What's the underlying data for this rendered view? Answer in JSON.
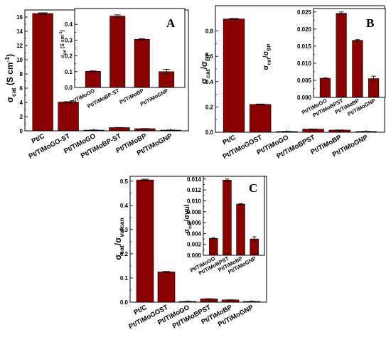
{
  "chart_data": [
    {
      "id": "A-main",
      "type": "bar",
      "categories": [
        "Pt/C",
        "Pt/TiMoGO-ST",
        "Pt/TiMoGO",
        "Pt/TiMoBP-ST",
        "Pt/TiMoBP",
        "Pt/TiMoGNP"
      ],
      "values": [
        16.5,
        4.05,
        0.1,
        0.45,
        0.3,
        0.1
      ],
      "errors": [
        0.1,
        0.05,
        0.02,
        0.02,
        0.02,
        0.02
      ],
      "ylim": [
        0,
        17
      ],
      "yticks": [
        0,
        2,
        4,
        6,
        8,
        10,
        12,
        14,
        16
      ],
      "ytick_labels": [
        "0",
        "2",
        "4",
        "6",
        "8",
        "10",
        "12",
        "14",
        "16"
      ],
      "ylabel": {
        "main": "σ",
        "sub": "cat",
        "rest": " (S cm",
        "sup": "-1",
        "close": ")"
      },
      "color": "#8b0000"
    },
    {
      "id": "A-inset",
      "type": "bar",
      "categories": [
        "Pt/TiMoGO",
        "Pt/TiMoBP-ST",
        "Pt/TiMoBP",
        "Pt/TiMoGNP"
      ],
      "values": [
        0.102,
        0.452,
        0.305,
        0.1
      ],
      "errors": [
        0.003,
        0.008,
        0.004,
        0.015
      ],
      "ylim": [
        0,
        0.5
      ],
      "yticks": [
        0.0,
        0.1,
        0.2,
        0.3,
        0.4
      ],
      "ytick_labels": [
        "0.0",
        "0.1",
        "0.2",
        "0.3",
        "0.4"
      ],
      "ylabel": {
        "main": "σ",
        "sub": "cat",
        "rest": " (S cm",
        "sup": "-1",
        "close": ")"
      },
      "panel_letter": "A",
      "color": "#8b0000"
    },
    {
      "id": "B-main",
      "type": "bar",
      "categories": [
        "Pt/C",
        "Pt/TiMoGOST",
        "Pt/TiMoGO",
        "Pt/TiMoBPST",
        "Pt/TiMoBP",
        "Pt/TiMoGNP"
      ],
      "values": [
        0.895,
        0.22,
        0.006,
        0.025,
        0.017,
        0.006
      ],
      "errors": [
        0.004,
        0.003,
        0.001,
        0.001,
        0.001,
        0.001
      ],
      "ylim": [
        0,
        1.0
      ],
      "yticks": [
        0.0,
        0.2,
        0.4,
        0.6,
        0.8
      ],
      "ytick_labels": [
        "0.0",
        "0.2",
        "0.4",
        "0.6",
        "0.8"
      ],
      "ylabel": {
        "main": "σ",
        "sub": "cat",
        "rest": "/σ",
        "sub2": "BP"
      },
      "color": "#8b0000"
    },
    {
      "id": "B-inset",
      "type": "bar",
      "categories": [
        "Pt/TiMoGO",
        "Pt/TiMoBPST",
        "Pt/TiMoBP",
        "Pt/TiMoGNP"
      ],
      "values": [
        0.0056,
        0.0246,
        0.0167,
        0.0055
      ],
      "errors": [
        0.0001,
        0.0004,
        0.0002,
        0.0007
      ],
      "ylim": [
        0,
        0.026
      ],
      "yticks": [
        0.0,
        0.005,
        0.01,
        0.015,
        0.02,
        0.025
      ],
      "ytick_labels": [
        "0.000",
        "0.005",
        "0.010",
        "0.015",
        "0.020",
        "0.025"
      ],
      "ylabel": {
        "main": "σ",
        "sub": "cat",
        "rest": "/σ",
        "sub2": "BP"
      },
      "panel_letter": "B",
      "color": "#8b0000"
    },
    {
      "id": "C-main",
      "type": "bar",
      "categories": [
        "Pt/C",
        "Pt/TiMoGOST",
        "Pt/TiMoGO",
        "Pt/TiMoBPST",
        "Pt/TiMoBP",
        "Pt/TiMoGNP"
      ],
      "values": [
        0.505,
        0.125,
        0.0032,
        0.0139,
        0.0095,
        0.0032
      ],
      "errors": [
        0.003,
        0.002,
        0.0003,
        0.0005,
        0.0003,
        0.0004
      ],
      "ylim": [
        0,
        0.52
      ],
      "yticks": [
        0.0,
        0.1,
        0.2,
        0.3,
        0.4,
        0.5
      ],
      "ytick_labels": [
        "0.0",
        "0.1",
        "0.2",
        "0.3",
        "0.4",
        "0.5"
      ],
      "ylabel": {
        "main": "σ",
        "sub": "cat",
        "rest": "/σ",
        "sub2": "vulcan"
      },
      "color": "#8b0000"
    },
    {
      "id": "C-inset",
      "type": "bar",
      "categories": [
        "Pt/TiMoGO",
        "Pt/TiMoBPST",
        "Pt/TiMoBP",
        "Pt/TiMoGNP"
      ],
      "values": [
        0.0031,
        0.0138,
        0.0094,
        0.003
      ],
      "errors": [
        0.0001,
        0.0002,
        0.0001,
        0.0004
      ],
      "ylim": [
        0,
        0.0145
      ],
      "yticks": [
        0.0,
        0.002,
        0.004,
        0.006,
        0.008,
        0.01,
        0.012,
        0.014
      ],
      "ytick_labels": [
        "0.000",
        "0.002",
        "0.004",
        "0.006",
        "0.008",
        "0.010",
        "0.012",
        "0.014"
      ],
      "ylabel": {
        "main": "σ",
        "sub": "cat",
        "rest": "/σvul"
      },
      "panel_letter": "C",
      "color": "#8b0000"
    }
  ]
}
